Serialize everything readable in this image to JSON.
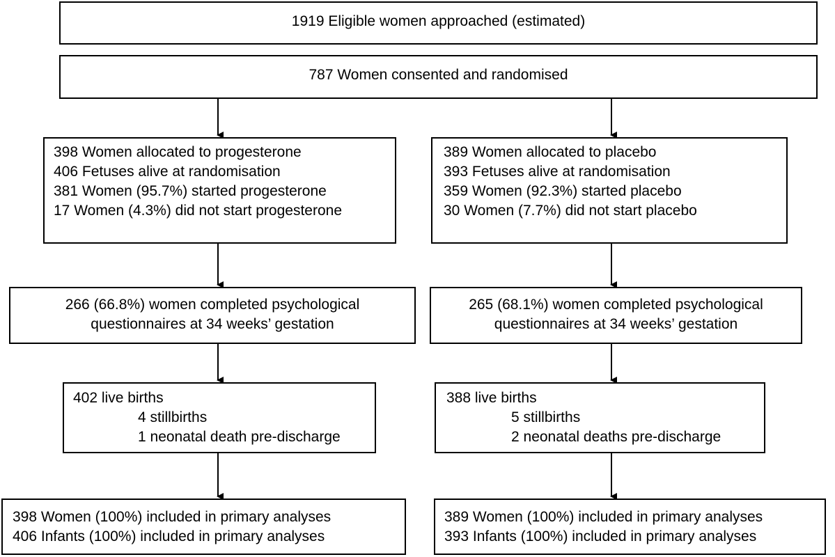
{
  "flowchart": {
    "eligible": "1919 Eligible women approached (estimated)",
    "consented": "787 Women consented and randomised",
    "progesterone": {
      "allocation": [
        "398 Women allocated to progesterone",
        "406 Fetuses alive at randomisation",
        "381 Women (95.7%) started progesterone",
        "17 Women (4.3%) did not start progesterone"
      ],
      "questionnaires": [
        "266 (66.8%) women completed psychological",
        "questionnaires at 34 weeks’ gestation"
      ],
      "births": {
        "live": "402 live births",
        "stillbirths": "4 stillbirths",
        "neonatal": "1 neonatal death pre-discharge"
      },
      "analysis": [
        "398 Women (100%) included in primary analyses",
        "406 Infants (100%) included in primary analyses"
      ]
    },
    "placebo": {
      "allocation": [
        "389 Women allocated to placebo",
        "393 Fetuses alive at randomisation",
        "359 Women (92.3%) started placebo",
        "30 Women (7.7%) did not start placebo"
      ],
      "questionnaires": [
        "265 (68.1%) women completed psychological",
        "questionnaires at 34 weeks’ gestation"
      ],
      "births": {
        "live": "388 live births",
        "stillbirths": "5 stillbirths",
        "neonatal": "2 neonatal deaths pre-discharge"
      },
      "analysis": [
        "389 Women (100%) included in primary analyses",
        "393 Infants (100%) included in primary analyses"
      ]
    }
  }
}
